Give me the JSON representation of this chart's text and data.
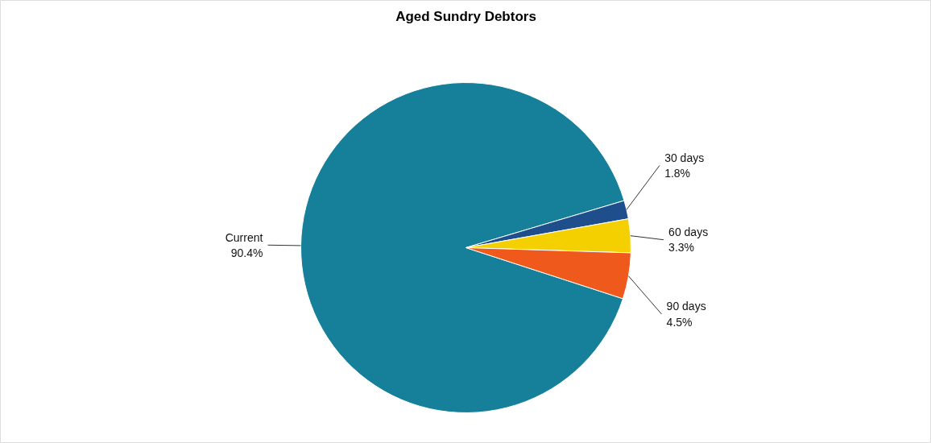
{
  "chart_data": {
    "type": "pie",
    "title": "Aged Sundry Debtors",
    "categories": [
      "Current",
      "30 days",
      "60 days",
      "90 days"
    ],
    "values": [
      90.4,
      1.8,
      3.3,
      4.5
    ],
    "colors": [
      "#16809a",
      "#1f4e8c",
      "#f5d000",
      "#ef5a1c"
    ],
    "value_labels": [
      "90.4%",
      "1.8%",
      "3.3%",
      "4.5%"
    ]
  }
}
